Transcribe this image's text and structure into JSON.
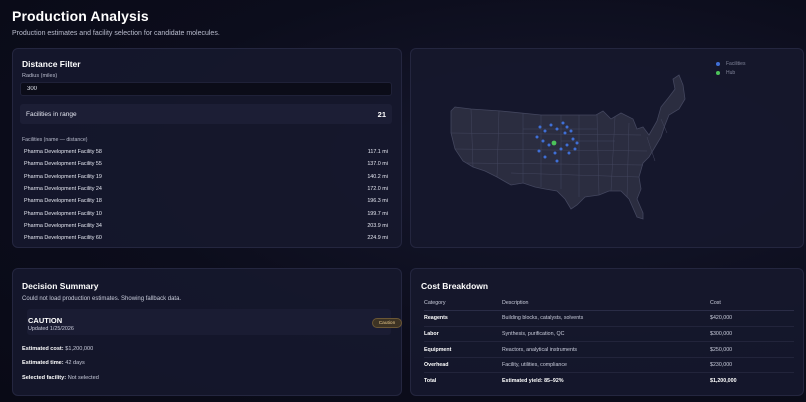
{
  "header": {
    "title": "Production Analysis",
    "subtitle": "Production estimates and facility selection for candidate molecules."
  },
  "distance_filter": {
    "title": "Distance Filter",
    "radius_label": "Radius (miles)",
    "radius_value": "300",
    "in_range_label": "Facilities in range",
    "in_range_count": "21",
    "list_label": "Facilities (name — distance)",
    "facilities": [
      {
        "name": "Pharma Development Facility 58",
        "distance": "117.1 mi"
      },
      {
        "name": "Pharma Development Facility 55",
        "distance": "137.0 mi"
      },
      {
        "name": "Pharma Development Facility 19",
        "distance": "140.2 mi"
      },
      {
        "name": "Pharma Development Facility 24",
        "distance": "172.0 mi"
      },
      {
        "name": "Pharma Development Facility 18",
        "distance": "196.3 mi"
      },
      {
        "name": "Pharma Development Facility 10",
        "distance": "199.7 mi"
      },
      {
        "name": "Pharma Development Facility 34",
        "distance": "203.9 mi"
      },
      {
        "name": "Pharma Development Facility 60",
        "distance": "224.9 mi"
      }
    ]
  },
  "map": {
    "legend": [
      {
        "label": "Facilities",
        "color": "#3f6fd6"
      },
      {
        "label": "Hub",
        "color": "#4cc35a"
      }
    ],
    "land_color": "#2b2d40",
    "border_color": "#43465e"
  },
  "decision_summary": {
    "title": "Decision Summary",
    "fallback_message": "Could not load production estimates. Showing fallback data.",
    "status": "CAUTION",
    "updated": "Updated 1/25/2026",
    "badge": "Caution",
    "estimated_cost_label": "Estimated cost:",
    "estimated_cost_value": "$1,200,000",
    "estimated_time_label": "Estimated time:",
    "estimated_time_value": "42 days",
    "selected_facility_label": "Selected facility:",
    "selected_facility_value": "Not selected"
  },
  "cost_breakdown": {
    "title": "Cost Breakdown",
    "headers": {
      "category": "Category",
      "description": "Description",
      "cost": "Cost"
    },
    "rows": [
      {
        "category": "Reagents",
        "description": "Building blocks, catalysts, solvents",
        "cost": "$420,000"
      },
      {
        "category": "Labor",
        "description": "Synthesis, purification, QC",
        "cost": "$300,000"
      },
      {
        "category": "Equipment",
        "description": "Reactors, analytical instruments",
        "cost": "$250,000"
      },
      {
        "category": "Overhead",
        "description": "Facility, utilities, compliance",
        "cost": "$230,000"
      }
    ],
    "total": {
      "category": "Total",
      "description": "Estimated yield: 85–92%",
      "cost": "$1,200,000"
    }
  }
}
